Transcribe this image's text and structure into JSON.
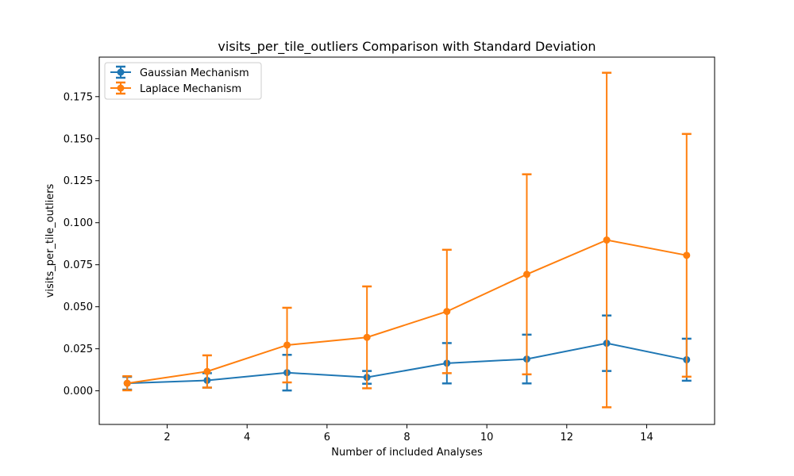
{
  "chart_data": {
    "type": "line",
    "title": "visits_per_tile_outliers Comparison with Standard Deviation",
    "xlabel": "Number of included Analyses",
    "ylabel": "visits_per_tile_outliers",
    "xlim": [
      0.3,
      15.7
    ],
    "ylim": [
      -0.02,
      0.1985
    ],
    "xticks": [
      2,
      4,
      6,
      8,
      10,
      12,
      14
    ],
    "xtick_labels": [
      "2",
      "4",
      "6",
      "8",
      "10",
      "12",
      "14"
    ],
    "yticks": [
      0,
      0.025,
      0.05,
      0.075,
      0.1,
      0.125,
      0.15,
      0.175
    ],
    "ytick_labels": [
      "0.000",
      "0.025",
      "0.050",
      "0.075",
      "0.100",
      "0.125",
      "0.150",
      "0.175"
    ],
    "grid": false,
    "legend_position": "top-left",
    "x": [
      1,
      3,
      5,
      7,
      9,
      11,
      13,
      15
    ],
    "series": [
      {
        "name": "Gaussian Mechanism",
        "color": "#1f77b4",
        "values": [
          0.0045,
          0.0062,
          0.0108,
          0.008,
          0.0164,
          0.0189,
          0.0283,
          0.0185
        ],
        "error": [
          0.0038,
          0.0043,
          0.0106,
          0.0038,
          0.012,
          0.0145,
          0.0165,
          0.0125
        ]
      },
      {
        "name": "Laplace Mechanism",
        "color": "#ff7f0e",
        "values": [
          0.0045,
          0.0115,
          0.0272,
          0.0318,
          0.0472,
          0.0693,
          0.0897,
          0.0806
        ],
        "error": [
          0.0042,
          0.0096,
          0.0222,
          0.0303,
          0.0367,
          0.0595,
          0.0995,
          0.0722
        ]
      }
    ]
  }
}
